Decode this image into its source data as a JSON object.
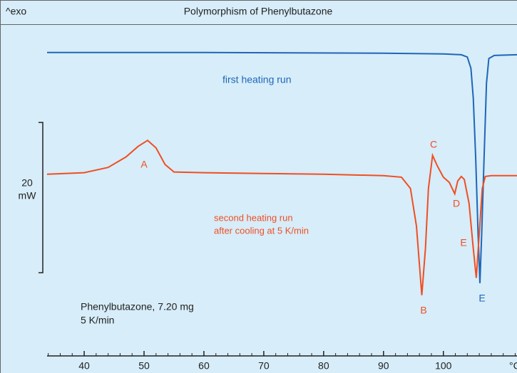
{
  "chart_data": {
    "type": "line",
    "title": "Polymorphism of Phenylbutazone",
    "y_label": "^exo",
    "x_unit": "°C",
    "xlim": [
      33.8,
      112.3
    ],
    "xticks": [
      40,
      50,
      60,
      70,
      80,
      90,
      100
    ],
    "xminorticks": [
      34,
      36,
      38,
      42,
      44,
      46,
      48,
      52,
      54,
      56,
      58,
      62,
      64,
      66,
      68,
      72,
      74,
      76,
      78,
      82,
      84,
      86,
      88,
      92,
      94,
      96,
      98,
      102,
      104,
      106,
      108,
      110,
      112
    ],
    "ylim": [
      -24,
      21
    ],
    "scale_bar": {
      "value": 20,
      "label": "20",
      "unit": "mW"
    },
    "series": [
      {
        "name": "first heating run",
        "color": "#1f66b8",
        "x": [
          33.8,
          60,
          90,
          100,
          103,
          104,
          104.6,
          105,
          105.4,
          105.8,
          106.1,
          106.4,
          106.8,
          107.2,
          107.6,
          108.5,
          112.3
        ],
        "values": [
          16.1,
          16.1,
          16.0,
          15.9,
          15.8,
          15.5,
          14,
          10,
          2,
          -8,
          -14.6,
          -8,
          2,
          12,
          15.3,
          15.7,
          15.8
        ]
      },
      {
        "name": [
          "second heating run",
          "after cooling at 5 K/min"
        ],
        "color": "#f04e23",
        "x": [
          33.8,
          40,
          44,
          47,
          49,
          50.6,
          52,
          53.5,
          55,
          60,
          70,
          80,
          90,
          93,
          94.5,
          95.5,
          96.4,
          97,
          97.5,
          98.2,
          99,
          100,
          101,
          101.9,
          102.4,
          103,
          103.5,
          104.3,
          105,
          105.5,
          106,
          106.5,
          107,
          108,
          112.3
        ],
        "values": [
          -0.1,
          0.1,
          0.8,
          2.2,
          3.6,
          4.4,
          3.4,
          1.2,
          0.2,
          0.1,
          0,
          -0.1,
          -0.3,
          -0.5,
          -2,
          -7,
          -16.2,
          -10,
          -2,
          2.4,
          1,
          -0.5,
          -1.2,
          -2.7,
          -1,
          -0.4,
          -0.8,
          -4,
          -10,
          -13.9,
          -8,
          -2,
          -0.4,
          -0.3,
          -0.3
        ]
      }
    ],
    "annotations": [
      "A",
      "B",
      "C",
      "D",
      "E",
      "E"
    ],
    "sample_info": [
      "Phenylbutazone, 7.20 mg",
      "5 K/min"
    ]
  }
}
